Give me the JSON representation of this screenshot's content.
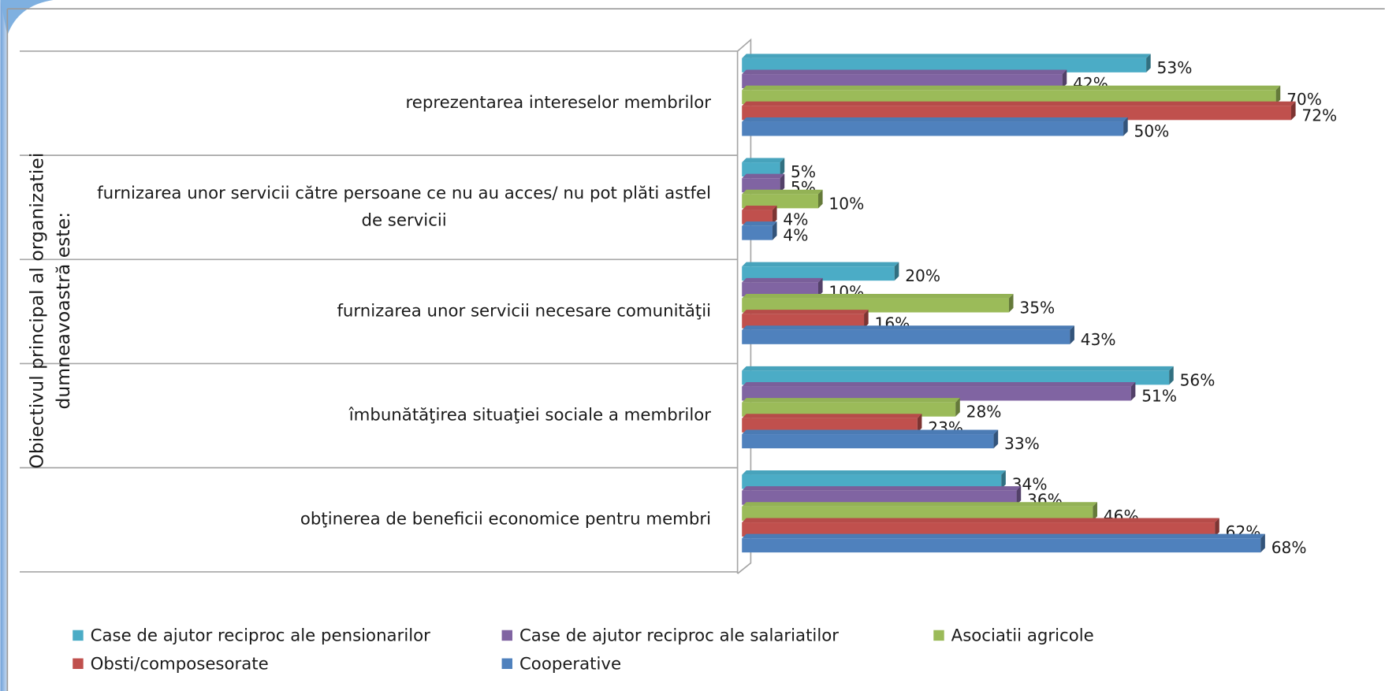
{
  "chart_data": {
    "type": "bar",
    "orientation": "horizontal",
    "y_axis_title": "Obiectivul principal al organizatiei dumneavoastră este:",
    "categories": [
      "reprezentarea intereselor membrilor",
      "furnizarea unor servicii către persoane ce nu au acces/ nu pot plăti astfel de servicii",
      "furnizarea unor servicii necesare comunităţii",
      "îmbunătăţirea situaţiei  sociale a membrilor",
      "obţinerea de beneficii economice pentru membri"
    ],
    "series": [
      {
        "name": "Case de ajutor reciproc ale pensionarilor",
        "color": "#4bacc6",
        "values": [
          53,
          5,
          20,
          56,
          34
        ],
        "value_labels": [
          "53%",
          "5%",
          "20%",
          "56%",
          "34%"
        ]
      },
      {
        "name": "Case de ajutor reciproc ale salariatilor",
        "color": "#8064a2",
        "values": [
          42,
          5,
          10,
          51,
          36
        ],
        "value_labels": [
          "42%",
          "5%",
          "10%",
          "51%",
          "36%"
        ]
      },
      {
        "name": "Asociatii agricole",
        "color": "#9bbb59",
        "values": [
          70,
          10,
          35,
          28,
          46
        ],
        "value_labels": [
          "70%",
          "10%",
          "35%",
          "28%",
          "46%"
        ]
      },
      {
        "name": "Obsti/composesorate",
        "color": "#c0504d",
        "values": [
          72,
          4,
          16,
          23,
          62
        ],
        "value_labels": [
          "72%",
          "4%",
          "16%",
          "23%",
          "62%"
        ]
      },
      {
        "name": "Cooperative",
        "color": "#4f81bd",
        "values": [
          50,
          4,
          43,
          33,
          68
        ],
        "value_labels": [
          "50%",
          "4%",
          "43%",
          "33%",
          "68%"
        ]
      }
    ]
  }
}
